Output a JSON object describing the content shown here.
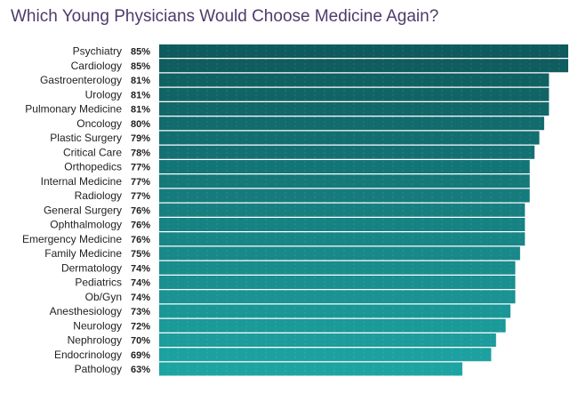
{
  "chart_data": {
    "type": "bar",
    "orientation": "horizontal",
    "title": "Which Young Physicians Would Choose Medicine Again?",
    "categories": [
      "Psychiatry",
      "Cardiology",
      "Gastroenterology",
      "Urology",
      "Pulmonary Medicine",
      "Oncology",
      "Plastic Surgery",
      "Critical Care",
      "Orthopedics",
      "Internal Medicine",
      "Radiology",
      "General Surgery",
      "Ophthalmology",
      "Emergency Medicine",
      "Family Medicine",
      "Dermatology",
      "Pediatrics",
      "Ob/Gyn",
      "Anesthesiology",
      "Neurology",
      "Nephrology",
      "Endocrinology",
      "Pathology"
    ],
    "values": [
      85,
      85,
      81,
      81,
      81,
      80,
      79,
      78,
      77,
      77,
      77,
      76,
      76,
      76,
      75,
      74,
      74,
      74,
      73,
      72,
      70,
      69,
      63
    ],
    "value_labels": [
      "85%",
      "85%",
      "81%",
      "81%",
      "81%",
      "80%",
      "79%",
      "78%",
      "77%",
      "77%",
      "77%",
      "76%",
      "76%",
      "76%",
      "75%",
      "74%",
      "74%",
      "74%",
      "73%",
      "72%",
      "70%",
      "69%",
      "63%"
    ],
    "xlim": [
      0,
      85
    ],
    "grid": false,
    "legend": "none",
    "colors": {
      "top": "#0f5a5c",
      "bottom": "#1ea3a3",
      "title": "#4f3a6b"
    }
  }
}
